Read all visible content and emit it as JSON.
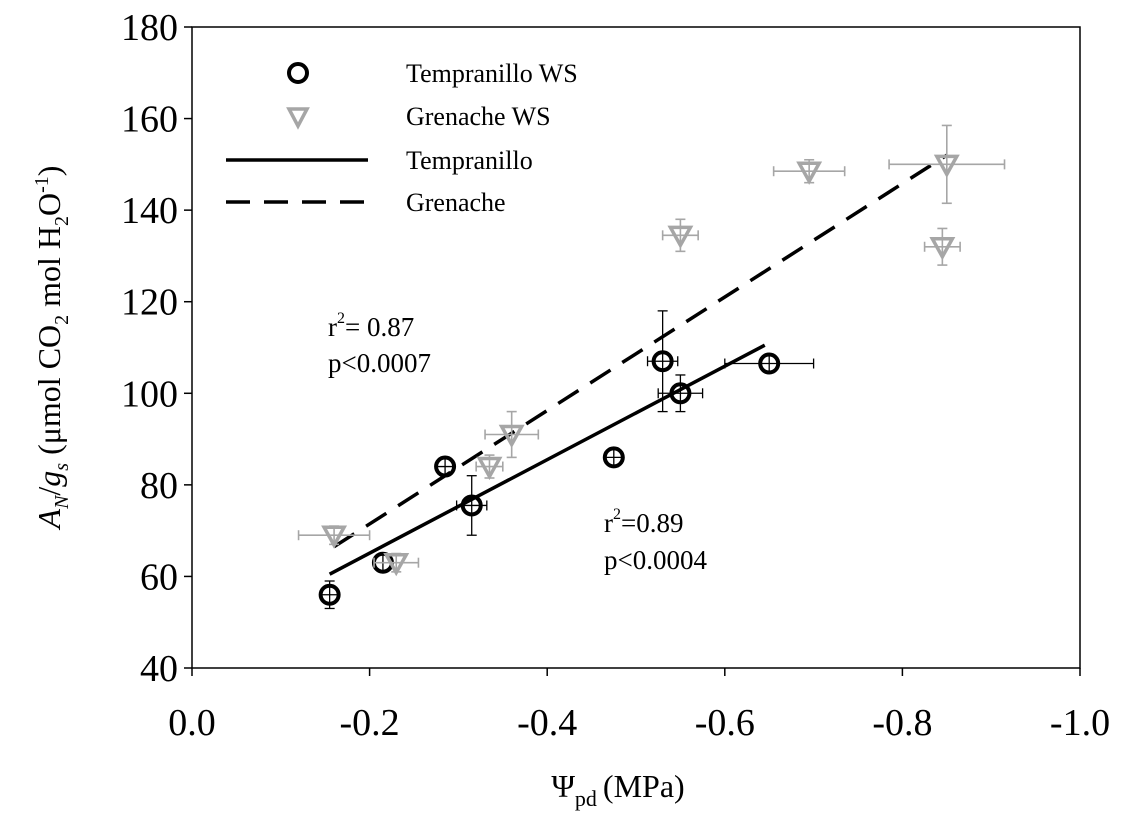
{
  "chart_data": {
    "type": "scatter",
    "xlabel": {
      "symbol": "Ψ",
      "sub": "pd",
      "unit": "(MPa)"
    },
    "ylabel": "A_N/g_s (μmol CO_2 mol H_2O^-1)",
    "xlim": [
      0.0,
      -1.0
    ],
    "ylim": [
      40,
      180
    ],
    "x_ticks": [
      0.0,
      -0.2,
      -0.4,
      -0.6,
      -0.8,
      -1.0
    ],
    "x_tick_labels": [
      "0.0",
      "-0.2",
      "-0.4",
      "-0.6",
      "-0.8",
      "-1.0"
    ],
    "y_ticks": [
      40,
      60,
      80,
      100,
      120,
      140,
      160,
      180
    ],
    "y_tick_labels": [
      "40",
      "60",
      "80",
      "100",
      "120",
      "140",
      "160",
      "180"
    ],
    "grid": false,
    "legend_position": "top-left",
    "series": [
      {
        "name": "Tempranillo WS",
        "marker": "circle",
        "color": "#000000",
        "points": [
          {
            "x": -0.155,
            "y": 56,
            "xerr": 0.01,
            "yerr": 3
          },
          {
            "x": -0.215,
            "y": 63,
            "xerr": 0.01,
            "yerr": 2
          },
          {
            "x": -0.285,
            "y": 84,
            "xerr": 0.01,
            "yerr": 2
          },
          {
            "x": -0.315,
            "y": 75.5,
            "xerr": 0.017,
            "yerr": 6.5
          },
          {
            "x": -0.475,
            "y": 86,
            "xerr": 0.01,
            "yerr": 2
          },
          {
            "x": -0.53,
            "y": 107,
            "xerr": 0.017,
            "yerr": 11
          },
          {
            "x": -0.55,
            "y": 100,
            "xerr": 0.025,
            "yerr": 4
          },
          {
            "x": -0.65,
            "y": 106.5,
            "xerr": 0.05,
            "yerr": 2
          }
        ]
      },
      {
        "name": "Grenache WS",
        "marker": "triangle-down",
        "color": "#a6a6a6",
        "points": [
          {
            "x": -0.16,
            "y": 69,
            "xerr": 0.04,
            "yerr": 2
          },
          {
            "x": -0.23,
            "y": 63,
            "xerr": 0.025,
            "yerr": 2
          },
          {
            "x": -0.335,
            "y": 84,
            "xerr": 0.015,
            "yerr": 2.5
          },
          {
            "x": -0.36,
            "y": 91,
            "xerr": 0.03,
            "yerr": 5
          },
          {
            "x": -0.55,
            "y": 134.5,
            "xerr": 0.02,
            "yerr": 3.5
          },
          {
            "x": -0.695,
            "y": 148.5,
            "xerr": 0.04,
            "yerr": 2.5
          },
          {
            "x": -0.845,
            "y": 132,
            "xerr": 0.02,
            "yerr": 4
          },
          {
            "x": -0.85,
            "y": 150,
            "xerr": 0.065,
            "yerr": 8.5
          }
        ]
      }
    ],
    "fit_lines": [
      {
        "name": "Tempranillo",
        "style": "solid",
        "color": "#000000",
        "x": [
          -0.155,
          -0.645
        ],
        "y": [
          60.5,
          110.5
        ]
      },
      {
        "name": "Grenache",
        "style": "dashed",
        "color": "#000000",
        "x": [
          -0.16,
          -0.85
        ],
        "y": [
          66.5,
          152
        ]
      }
    ],
    "annotations": [
      {
        "id": "grenache-stat",
        "lines": [
          "r2= 0.87",
          "p<0.0007"
        ]
      },
      {
        "id": "tempranillo-stat",
        "lines": [
          "r2=0.89",
          "p<0.0004"
        ]
      }
    ]
  }
}
